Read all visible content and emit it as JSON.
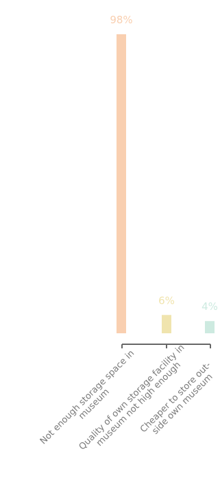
{
  "chart_data": {
    "type": "bar",
    "categories": [
      [
        "Not enough storage space in",
        "museum"
      ],
      [
        "Quality of own storage facility in",
        "museum not high enough"
      ],
      [
        "Cheaper to store out-",
        "side own museum"
      ]
    ],
    "values": [
      98,
      6,
      4
    ],
    "value_labels": [
      "98%",
      "6%",
      "4%"
    ],
    "ylim": [
      0,
      100
    ],
    "colors": {
      "bars": [
        "#f9cfb0",
        "#f0e4ae",
        "#cdeae0"
      ],
      "labels": [
        "#f9cfb0",
        "#f0e4ae",
        "#cdeae0"
      ],
      "axis": "#666666",
      "category_text": "#7a7a7a"
    },
    "grid": false,
    "legend": "none"
  }
}
